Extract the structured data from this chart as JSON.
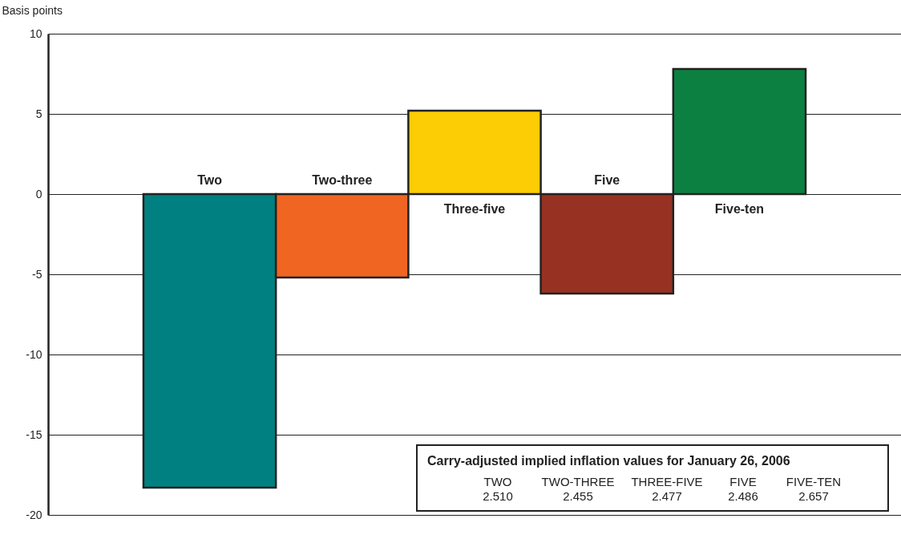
{
  "chart_data": {
    "type": "bar",
    "ylabel": "Basis points",
    "categories": [
      "Two",
      "Two-three",
      "Three-five",
      "Five",
      "Five-ten"
    ],
    "values": [
      -18.3,
      -5.2,
      5.2,
      -6.2,
      7.8
    ],
    "colors": [
      "#008080",
      "#f06522",
      "#fccc05",
      "#973222",
      "#0c8040"
    ],
    "ylim": [
      -20,
      10
    ],
    "yticks": [
      -20,
      -15,
      -10,
      -5,
      0,
      5,
      10
    ],
    "grid": "y",
    "annotations": [
      "Carry-adjusted implied inflation values for January 26, 2006",
      "TWO",
      "TWO-THREE",
      "THREE-FIVE",
      "FIVE",
      "FIVE-TEN",
      "2.510",
      "2.455",
      "2.477",
      "2.486",
      "2.657"
    ]
  }
}
